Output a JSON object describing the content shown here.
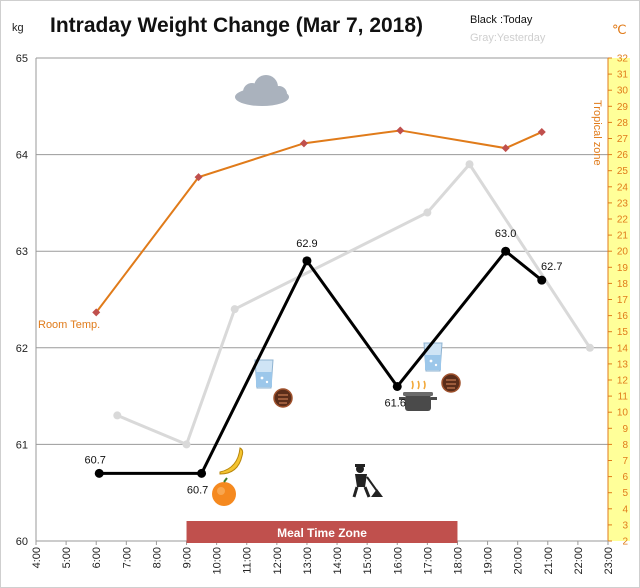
{
  "header": {
    "title": "Intraday Weight Change (Mar 7, 2018)",
    "legend_today": "Black :Today",
    "legend_yesterday": "Gray:Yesterday",
    "unit_left": "kg",
    "unit_right": "℃"
  },
  "annotations": {
    "room_temp": "Room Temp.",
    "tropical_zone": "Tropical zone",
    "meal_time_zone": "Meal Time Zone"
  },
  "icons": [
    "cloud-icon",
    "water-glass-icon",
    "chocolate-cookie-icon",
    "banana-icon",
    "orange-icon",
    "cooking-pot-icon",
    "gardening-person-icon"
  ],
  "colors": {
    "today": "#000000",
    "yesterday": "#d9d9d9",
    "temperature": "#e07b1a",
    "temperature_marker": "#c0504d",
    "meal_zone": "#c0504d",
    "right_axis_band": "#ffff99"
  },
  "chart_data": {
    "type": "line",
    "title": "Intraday Weight Change (Mar 7, 2018)",
    "x_ticks": [
      "4:00",
      "5:00",
      "6:00",
      "7:00",
      "8:00",
      "9:00",
      "10:00",
      "11:00",
      "12:00",
      "13:00",
      "14:00",
      "15:00",
      "16:00",
      "17:00",
      "18:00",
      "19:00",
      "20:00",
      "21:00",
      "22:00",
      "23:00"
    ],
    "xlim": [
      4,
      23
    ],
    "y_left": {
      "label": "kg",
      "lim": [
        60,
        65
      ],
      "ticks": [
        60,
        61,
        62,
        63,
        64,
        65
      ]
    },
    "y_right": {
      "label": "℃",
      "lim": [
        2,
        32
      ],
      "ticks": [
        2,
        3,
        4,
        5,
        6,
        7,
        8,
        9,
        10,
        11,
        12,
        13,
        14,
        15,
        16,
        17,
        18,
        19,
        20,
        21,
        22,
        23,
        24,
        25,
        26,
        27,
        28,
        29,
        30,
        31,
        32
      ]
    },
    "series": [
      {
        "name": "Today",
        "axis": "left",
        "x": [
          6.1,
          9.5,
          13.0,
          16.0,
          19.6,
          20.8
        ],
        "y": [
          60.7,
          60.7,
          62.9,
          61.6,
          63.0,
          62.7
        ],
        "labels": [
          "60.7",
          "60.7",
          "62.9",
          "61.6",
          "63.0",
          "62.7"
        ]
      },
      {
        "name": "Yesterday",
        "axis": "left",
        "x": [
          6.7,
          9.0,
          10.6,
          17.0,
          18.4,
          22.4
        ],
        "y": [
          61.3,
          61.0,
          62.4,
          63.4,
          63.9,
          62.0
        ]
      },
      {
        "name": "Room Temp.",
        "axis": "right",
        "x": [
          6.0,
          9.4,
          12.9,
          16.1,
          19.6,
          20.8
        ],
        "y": [
          16.2,
          24.6,
          26.7,
          27.5,
          26.4,
          27.4
        ]
      }
    ],
    "meal_time_zone": [
      9.0,
      18.0
    ],
    "grid": true
  }
}
